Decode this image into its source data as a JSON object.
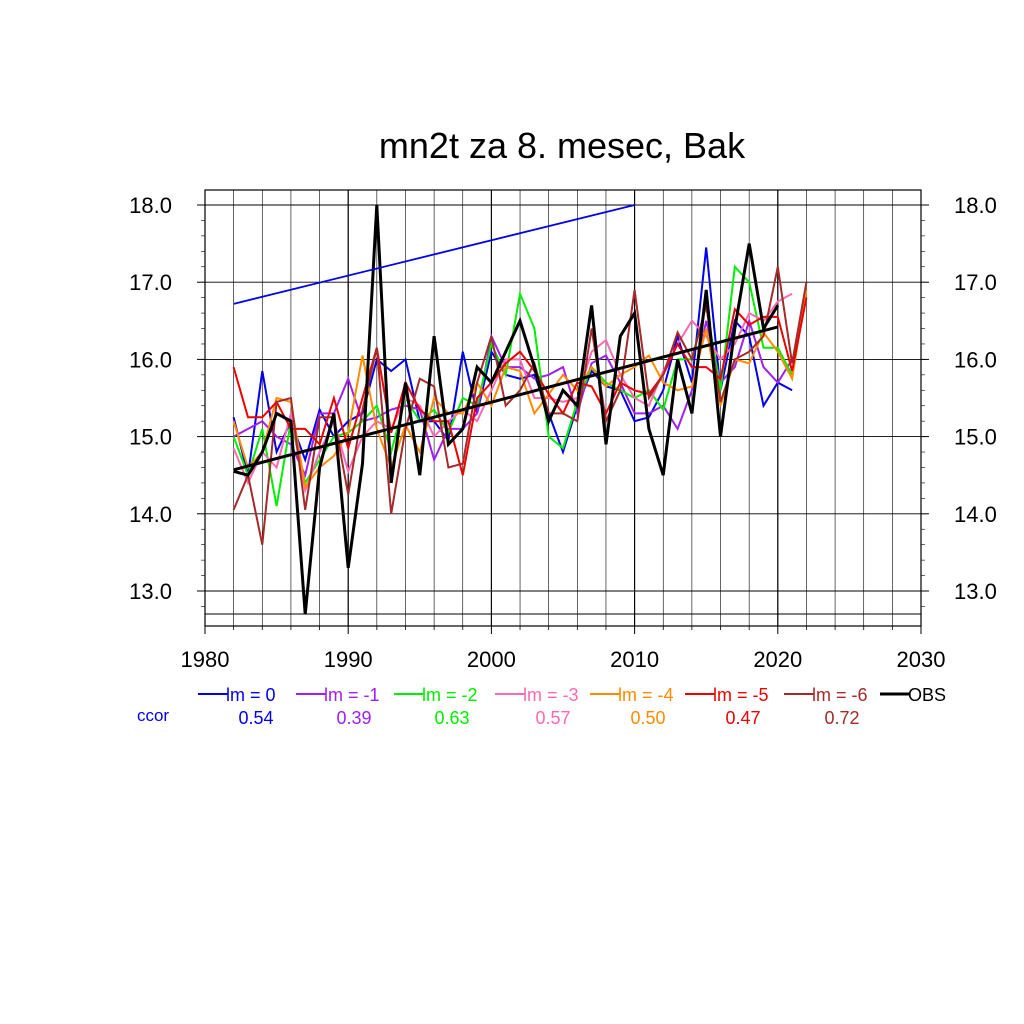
{
  "chart_data": {
    "type": "line",
    "title": "mn2t za 8. mesec, Bak",
    "xlabel": "",
    "ylabel": "",
    "xlim": [
      1980,
      2030
    ],
    "ylim": [
      12.7,
      18.0
    ],
    "x_ticks": [
      "1980",
      "1990",
      "2000",
      "2010",
      "2020",
      "2030"
    ],
    "y_ticks": [
      "13.0",
      "14.0",
      "15.0",
      "16.0",
      "17.0",
      "18.0"
    ],
    "grid": true,
    "legend_position": "bottom",
    "ccor_label": "ccor",
    "series": [
      {
        "name": "lm = 0",
        "color": "#0000ee",
        "ccor": "0.54",
        "x": [
          1982,
          1983,
          1984,
          1985,
          1986,
          1987,
          1988,
          1989,
          1990,
          1991,
          1992,
          1993,
          1994,
          1995,
          1996,
          1997,
          1998,
          1999,
          2000,
          2001,
          2002,
          2003,
          2004,
          2005,
          2006,
          2007,
          2008,
          2009,
          2010,
          2011,
          2012,
          2013,
          2014,
          2015,
          2016,
          2017,
          2018,
          2019,
          2020,
          2021
        ],
        "y": [
          15.25,
          14.5,
          15.85,
          14.8,
          15.2,
          14.7,
          15.35,
          15.0,
          15.2,
          15.3,
          16.0,
          15.85,
          16.0,
          15.2,
          15.2,
          14.95,
          16.1,
          15.3,
          16.1,
          15.8,
          15.75,
          15.8,
          15.3,
          14.8,
          15.4,
          15.85,
          15.65,
          15.6,
          15.2,
          15.25,
          15.6,
          16.3,
          15.7,
          17.45,
          15.6,
          16.5,
          16.3,
          15.4,
          15.7,
          15.6
        ]
      },
      {
        "name": "lm = -1",
        "color": "#a020f0",
        "ccor": "0.39",
        "x": [
          1982,
          1983,
          1984,
          1985,
          1986,
          1987,
          1988,
          1989,
          1990,
          1991,
          1992,
          1993,
          1994,
          1995,
          1996,
          1997,
          1998,
          1999,
          2000,
          2001,
          2002,
          2003,
          2004,
          2005,
          2006,
          2007,
          2008,
          2009,
          2010,
          2011,
          2012,
          2013,
          2014,
          2015,
          2016,
          2017,
          2018,
          2019,
          2020,
          2021
        ],
        "y": [
          15.0,
          15.1,
          15.2,
          15.0,
          14.9,
          14.5,
          15.3,
          15.3,
          15.75,
          15.2,
          15.25,
          15.35,
          15.4,
          15.35,
          14.7,
          15.1,
          15.1,
          15.3,
          16.3,
          15.9,
          15.9,
          15.75,
          15.8,
          15.9,
          15.3,
          15.95,
          16.05,
          15.7,
          15.3,
          15.3,
          15.4,
          15.1,
          15.6,
          16.5,
          15.7,
          15.9,
          16.5,
          15.9,
          15.7,
          16.0
        ]
      },
      {
        "name": "lm = -2",
        "color": "#00ee00",
        "ccor": "0.63",
        "x": [
          1982,
          1983,
          1984,
          1985,
          1986,
          1987,
          1988,
          1989,
          1990,
          1991,
          1992,
          1993,
          1994,
          1995,
          1996,
          1997,
          1998,
          1999,
          2000,
          2001,
          2002,
          2003,
          2004,
          2005,
          2006,
          2007,
          2008,
          2009,
          2010,
          2011,
          2012,
          2013,
          2014,
          2015,
          2016,
          2017,
          2018,
          2019,
          2020,
          2021
        ],
        "y": [
          15.0,
          14.5,
          15.1,
          14.1,
          15.2,
          14.4,
          14.7,
          15.0,
          15.05,
          15.2,
          15.4,
          14.8,
          15.5,
          15.2,
          15.35,
          15.05,
          15.5,
          15.4,
          16.2,
          15.8,
          16.85,
          16.4,
          15.0,
          14.85,
          15.45,
          15.9,
          15.7,
          15.6,
          15.5,
          15.6,
          15.35,
          16.0,
          16.0,
          16.7,
          15.6,
          17.2,
          17.0,
          16.15,
          16.15,
          15.8
        ]
      },
      {
        "name": "lm = -3",
        "color": "#ff69b4",
        "ccor": "0.57",
        "x": [
          1982,
          1983,
          1984,
          1985,
          1986,
          1987,
          1988,
          1989,
          1990,
          1991,
          1992,
          1993,
          1994,
          1995,
          1996,
          1997,
          1998,
          1999,
          2000,
          2001,
          2002,
          2003,
          2004,
          2005,
          2006,
          2007,
          2008,
          2009,
          2010,
          2011,
          2012,
          2013,
          2014,
          2015,
          2016,
          2017,
          2018,
          2019,
          2020,
          2021
        ],
        "y": [
          14.85,
          14.4,
          14.8,
          14.6,
          15.3,
          14.3,
          14.8,
          15.2,
          14.55,
          15.0,
          15.2,
          15.1,
          15.5,
          15.4,
          15.0,
          15.2,
          15.35,
          15.2,
          15.6,
          16.0,
          16.0,
          15.5,
          15.5,
          15.45,
          15.5,
          16.1,
          16.25,
          15.8,
          15.5,
          15.4,
          15.85,
          16.2,
          16.5,
          16.3,
          16.0,
          16.2,
          16.6,
          16.5,
          16.75,
          16.85
        ]
      },
      {
        "name": "lm = -4",
        "color": "#ff8c00",
        "ccor": "0.50",
        "x": [
          1982,
          1983,
          1984,
          1985,
          1986,
          1987,
          1988,
          1989,
          1990,
          1991,
          1992,
          1993,
          1994,
          1995,
          1996,
          1997,
          1998,
          1999,
          2000,
          2001,
          2002,
          2003,
          2004,
          2005,
          2006,
          2007,
          2008,
          2009,
          2010,
          2011,
          2012,
          2013,
          2014,
          2015,
          2016,
          2017,
          2018,
          2019,
          2020,
          2021,
          2022
        ],
        "y": [
          15.2,
          14.6,
          14.8,
          15.5,
          15.45,
          14.35,
          14.6,
          14.75,
          15.05,
          16.05,
          15.1,
          14.6,
          15.15,
          14.8,
          15.5,
          15.3,
          15.3,
          15.7,
          15.4,
          15.9,
          15.85,
          15.3,
          15.55,
          15.8,
          15.6,
          15.9,
          15.65,
          15.8,
          15.9,
          16.05,
          15.7,
          15.6,
          15.65,
          16.4,
          15.4,
          16.0,
          15.95,
          16.35,
          16.1,
          15.75,
          16.9
        ]
      },
      {
        "name": "lm = -5",
        "color": "#ee0000",
        "ccor": "0.47",
        "x": [
          1982,
          1983,
          1984,
          1985,
          1986,
          1987,
          1988,
          1989,
          1990,
          1991,
          1992,
          1993,
          1994,
          1995,
          1996,
          1997,
          1998,
          1999,
          2000,
          2001,
          2002,
          2003,
          2004,
          2005,
          2006,
          2007,
          2008,
          2009,
          2010,
          2011,
          2012,
          2013,
          2014,
          2015,
          2016,
          2017,
          2018,
          2019,
          2020,
          2021,
          2022
        ],
        "y": [
          15.9,
          15.25,
          15.25,
          15.45,
          15.1,
          15.1,
          14.9,
          15.5,
          14.85,
          15.5,
          16.15,
          15.05,
          15.7,
          15.35,
          15.2,
          15.2,
          14.5,
          15.5,
          15.7,
          15.95,
          16.1,
          15.85,
          15.55,
          15.3,
          15.7,
          15.65,
          15.3,
          15.7,
          15.6,
          15.55,
          15.8,
          16.2,
          15.9,
          15.9,
          15.75,
          16.65,
          16.45,
          16.55,
          16.55,
          15.85,
          16.8
        ]
      },
      {
        "name": "lm = -6",
        "color": "#a52a2a",
        "ccor": "0.72",
        "x": [
          1982,
          1983,
          1984,
          1985,
          1986,
          1987,
          1988,
          1989,
          1990,
          1991,
          1992,
          1993,
          1994,
          1995,
          1996,
          1997,
          1998,
          1999,
          2000,
          2001,
          2002,
          2003,
          2004,
          2005,
          2006,
          2007,
          2008,
          2009,
          2010,
          2011,
          2012,
          2013,
          2014,
          2015,
          2016,
          2017,
          2018,
          2019,
          2020,
          2021,
          2022
        ],
        "y": [
          14.05,
          14.5,
          13.6,
          15.45,
          15.5,
          14.05,
          15.25,
          15.25,
          14.25,
          15.35,
          16.15,
          14.0,
          15.1,
          15.75,
          15.65,
          14.6,
          14.65,
          15.7,
          16.3,
          15.4,
          15.6,
          15.95,
          15.3,
          15.3,
          15.2,
          16.4,
          15.2,
          15.6,
          16.9,
          15.5,
          15.8,
          16.35,
          16.0,
          16.7,
          15.45,
          16.0,
          16.1,
          16.3,
          17.2,
          15.95,
          17.0
        ]
      },
      {
        "name": "OBS",
        "color": "#000000",
        "ccor": "",
        "x": [
          1982,
          1983,
          1984,
          1985,
          1986,
          1987,
          1988,
          1989,
          1990,
          1991,
          1992,
          1993,
          1994,
          1995,
          1996,
          1997,
          1998,
          1999,
          2000,
          2001,
          2002,
          2003,
          2004,
          2005,
          2006,
          2007,
          2008,
          2009,
          2010,
          2011,
          2012,
          2013,
          2014,
          2015,
          2016,
          2017,
          2018,
          2019,
          2020
        ],
        "y": [
          14.55,
          14.5,
          14.8,
          15.3,
          15.2,
          12.7,
          14.6,
          15.3,
          13.3,
          14.65,
          18.0,
          14.4,
          15.7,
          14.5,
          16.3,
          14.9,
          15.1,
          15.9,
          15.7,
          16.1,
          16.5,
          15.9,
          15.2,
          15.6,
          15.4,
          16.7,
          14.9,
          16.3,
          16.6,
          15.1,
          14.5,
          16.0,
          15.3,
          16.9,
          15.0,
          16.4,
          17.5,
          16.4,
          16.7
        ]
      }
    ],
    "trend_lines": [
      {
        "series": "OBS",
        "color": "#000000",
        "x": [
          1982,
          2020
        ],
        "y": [
          14.57,
          16.42
        ]
      },
      {
        "series": "lm = 0",
        "color": "#0000ee",
        "x": [
          1982,
          2010
        ],
        "y": [
          16.72,
          18.0
        ]
      }
    ]
  }
}
